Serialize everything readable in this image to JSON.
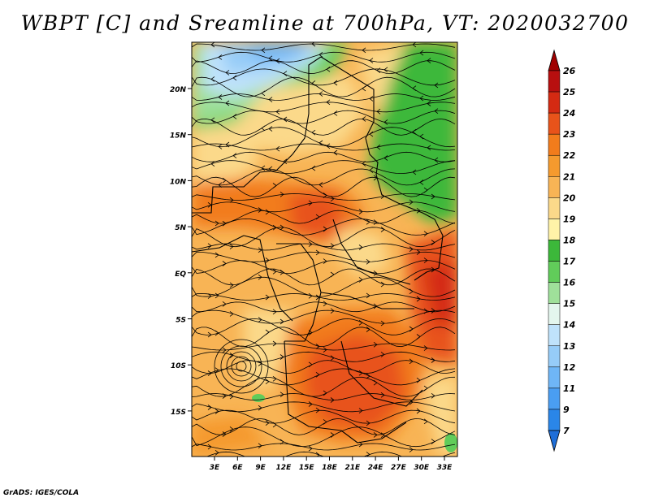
{
  "title": "WBPT [C] and Sreamline at 700hPa, VT: 2020032700",
  "credit": "GrADS: IGES/COLA",
  "map": {
    "lat_ticks": [
      "20N",
      "15N",
      "10N",
      "5N",
      "EQ",
      "5S",
      "10S",
      "15S"
    ],
    "lon_ticks": [
      "3E",
      "6E",
      "9E",
      "12E",
      "15E",
      "18E",
      "21E",
      "24E",
      "27E",
      "30E",
      "33E"
    ]
  },
  "colorbar": {
    "labels": [
      "7",
      "9",
      "11",
      "12",
      "13",
      "14",
      "15",
      "16",
      "17",
      "18",
      "19",
      "20",
      "21",
      "22",
      "23",
      "24",
      "25",
      "26"
    ],
    "colors": [
      "#1e6ed8",
      "#2a86e8",
      "#4a9ef2",
      "#6fb6f6",
      "#96ccf8",
      "#bfe2fb",
      "#e4f6ee",
      "#9fe09a",
      "#61cc5a",
      "#3cb83a",
      "#fff3a8",
      "#fbd98a",
      "#f8b455",
      "#f59a2e",
      "#f27c1c",
      "#e8531a",
      "#d42a12",
      "#b80f0f",
      "#a00000"
    ]
  }
}
